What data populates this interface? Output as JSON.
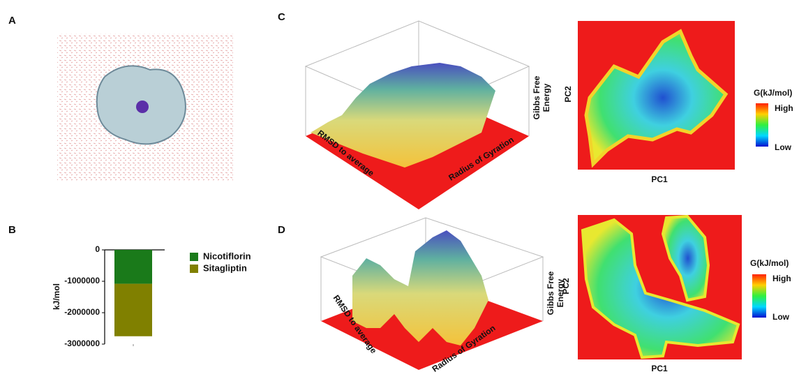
{
  "panels": {
    "a": {
      "label": "A"
    },
    "b": {
      "label": "B"
    },
    "c": {
      "label": "C",
      "surface": {
        "x_label": "RMSD to average",
        "y_label": "Radius of Gyration",
        "z_label": [
          "Gibbs Free",
          "Energy"
        ]
      },
      "heatmap": {
        "x_label": "PC1",
        "y_label": "PC2",
        "colorbar_title": "G(kJ/mol)",
        "colorbar_high": "High",
        "colorbar_low": "Low"
      }
    },
    "d": {
      "label": "D",
      "surface": {
        "x_label": "RMSD to average",
        "y_label": "Radius of Gyration",
        "z_label": [
          "Gibbs Free",
          "Energy"
        ]
      },
      "heatmap": {
        "x_label": "PC1",
        "y_label": "PC2",
        "colorbar_title": "G(kJ/mol)",
        "colorbar_high": "High",
        "colorbar_low": "Low"
      }
    }
  },
  "chart_data": {
    "type": "stacked_bar",
    "y_label": "kJ/mol",
    "categories": [
      null
    ],
    "series": [
      {
        "name": "Nicotiflorin",
        "color": "#1a7a1a",
        "values": [
          -1080000
        ]
      },
      {
        "name": "Sitagliptin",
        "color": "#808000",
        "values": [
          -1670000
        ]
      }
    ],
    "ylim": [
      -3000000,
      0
    ],
    "yticks": [
      -3000000,
      -2000000,
      -1000000,
      0
    ]
  }
}
